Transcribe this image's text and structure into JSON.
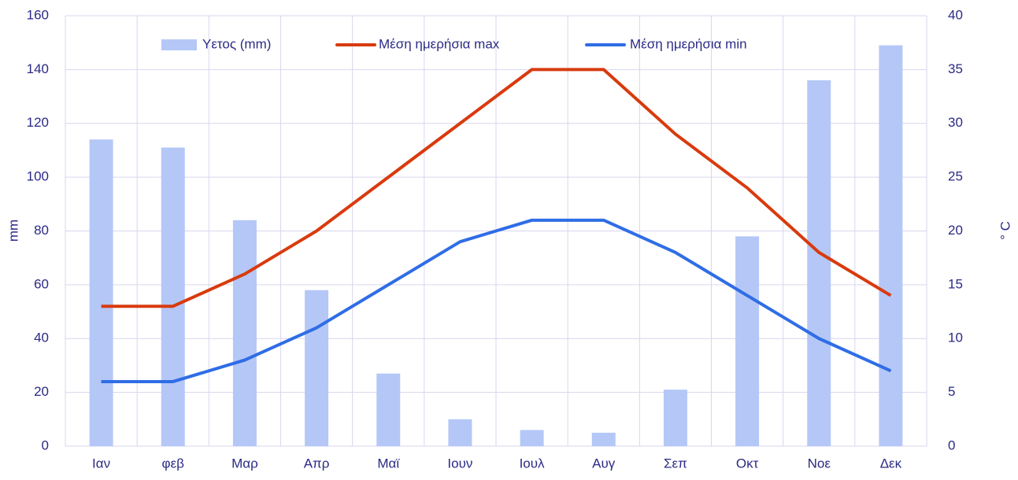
{
  "chart_data": {
    "type": "bar",
    "categories": [
      "Ιαν",
      "φεβ",
      "Μαρ",
      "Απρ",
      "Μαϊ",
      "Ιουν",
      "Ιουλ",
      "Αυγ",
      "Σεπ",
      "Οκτ",
      "Νοε",
      "Δεκ"
    ],
    "series": [
      {
        "name": "Υετος (mm)",
        "type": "bar",
        "color": "#b4c7f7",
        "values": [
          114,
          111,
          84,
          58,
          27,
          10,
          6,
          5,
          21,
          78,
          136,
          149
        ]
      },
      {
        "name": "Μέση ημερήσια max",
        "type": "line",
        "axis": "y2",
        "color": "#d83b0e",
        "values": [
          13,
          13,
          16,
          20,
          25,
          30,
          35,
          35,
          29,
          24,
          18,
          14
        ]
      },
      {
        "name": "Μέση ημερήσια min",
        "type": "line",
        "axis": "y2",
        "color": "#2f6de6",
        "values": [
          6,
          6,
          8,
          11,
          15,
          19,
          21,
          21,
          18,
          14,
          10,
          7
        ]
      }
    ],
    "ylabel": "mm",
    "y2label": "° C",
    "ylim": [
      0,
      160
    ],
    "yticks": [
      0,
      20,
      40,
      60,
      80,
      100,
      120,
      140,
      160
    ],
    "y2lim": [
      0,
      40
    ],
    "y2ticks": [
      0,
      5,
      10,
      15,
      20,
      25,
      30,
      35,
      40
    ],
    "grid": true,
    "legend": "top"
  }
}
